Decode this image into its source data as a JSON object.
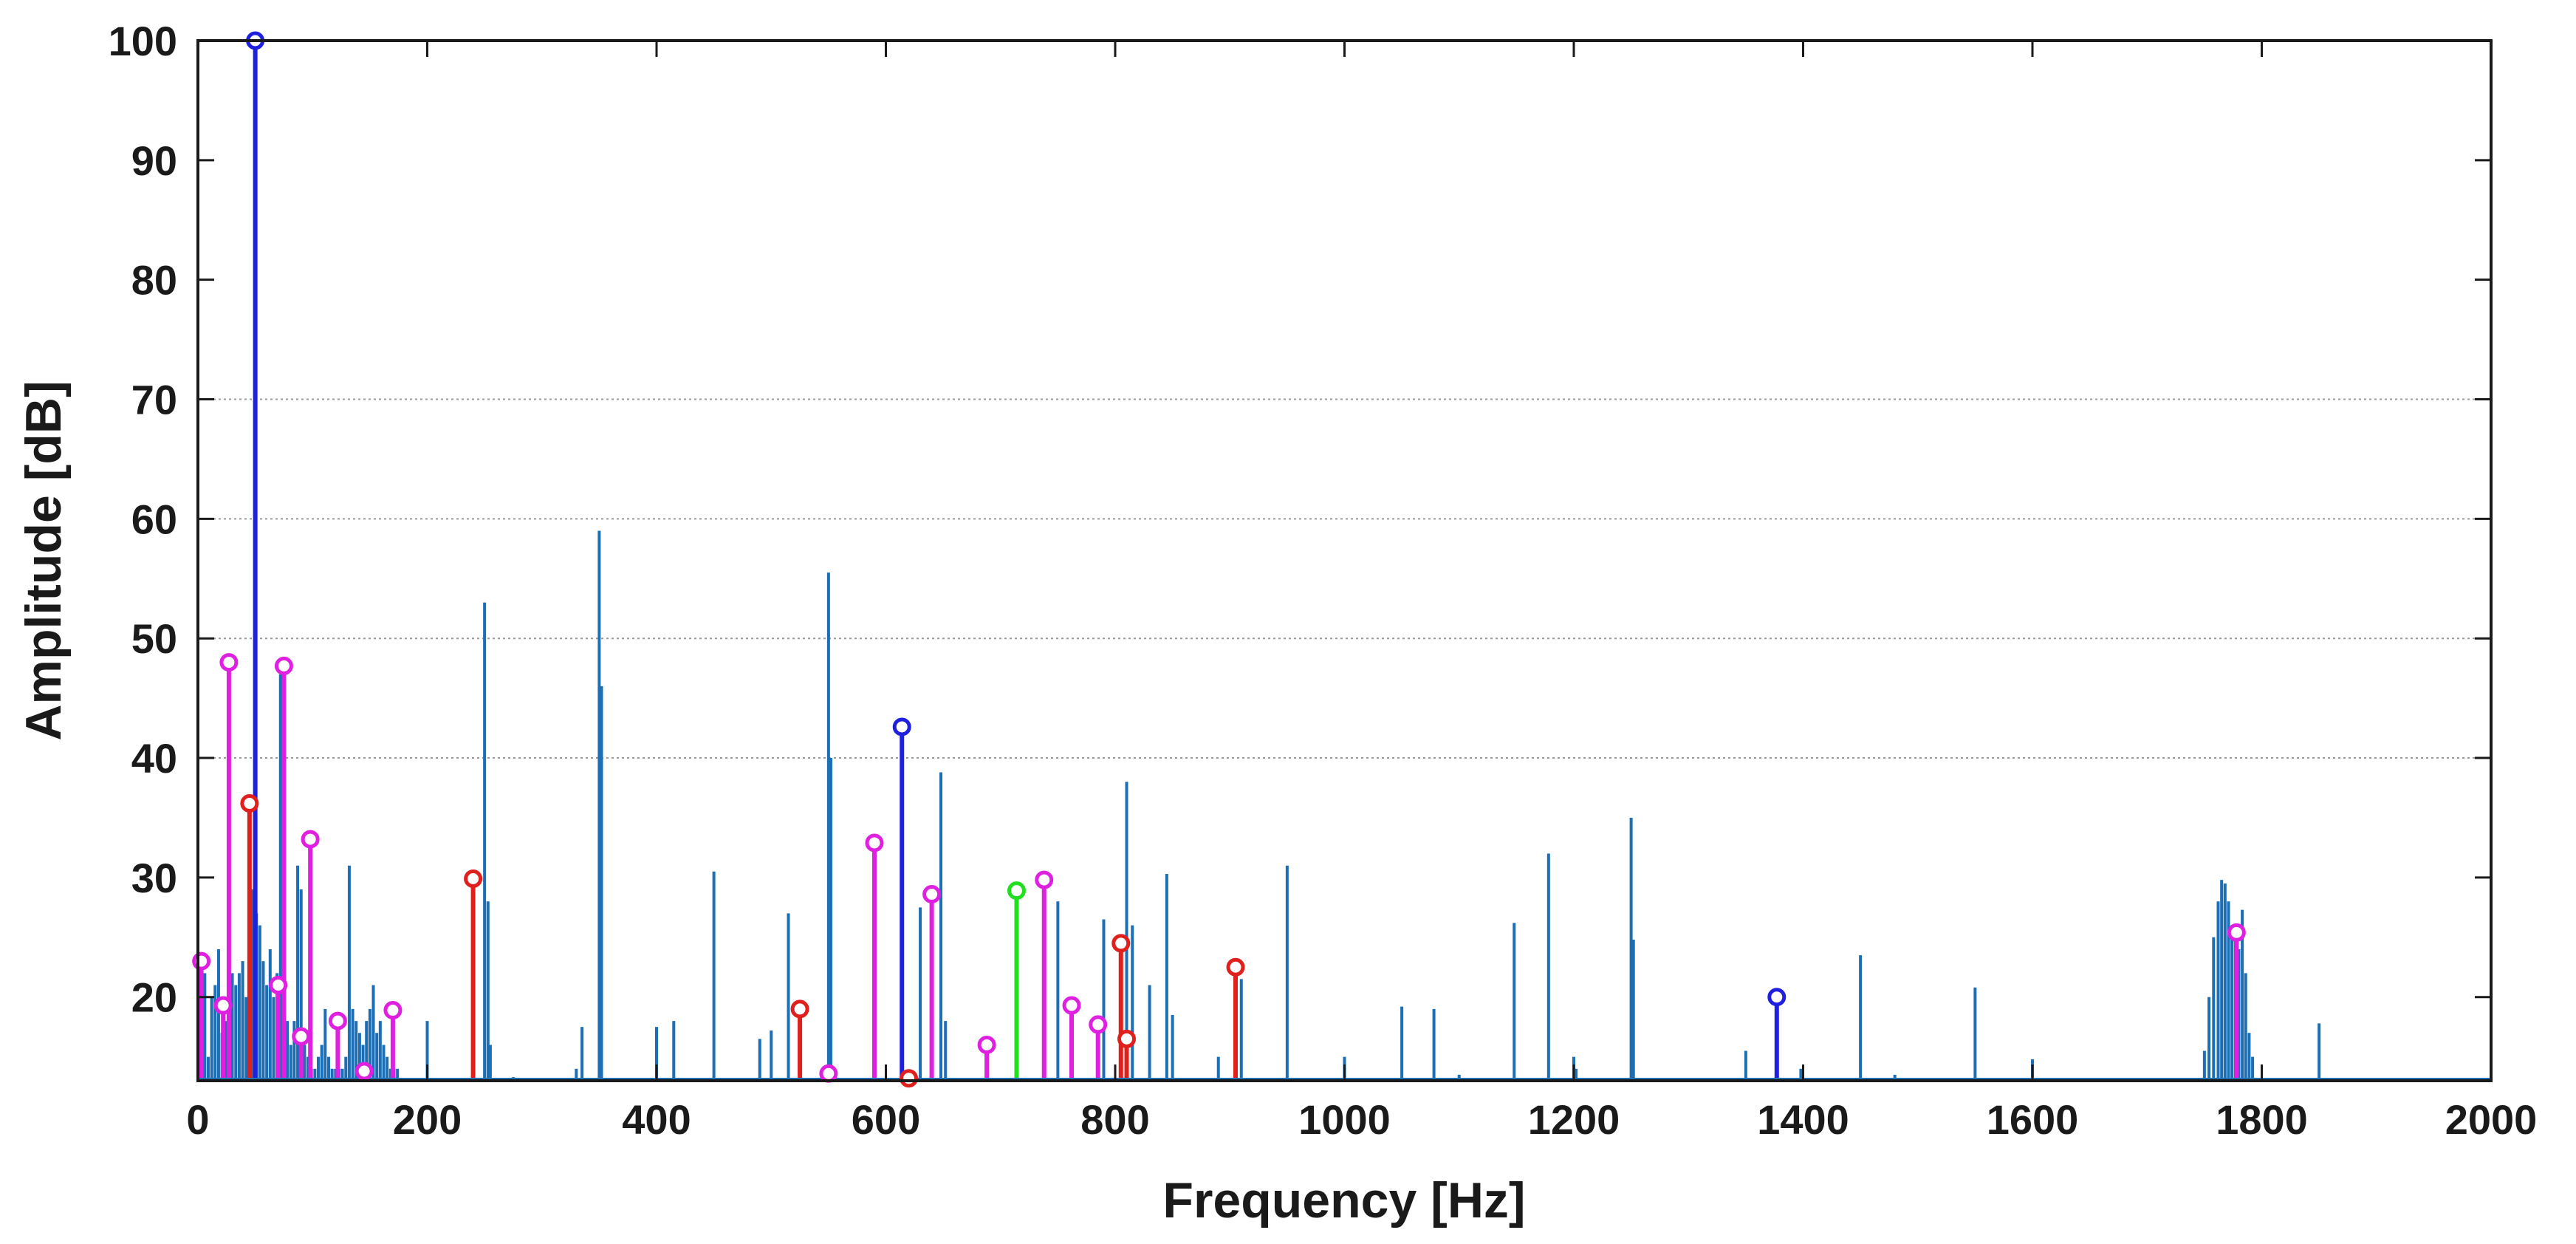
{
  "chart_data": {
    "type": "stem",
    "title": "",
    "xlabel": "Frequency [Hz]",
    "ylabel": "Amplitude [dB]",
    "xlim": [
      0,
      2000
    ],
    "ylim": [
      13,
      100
    ],
    "x_ticks": [
      0,
      200,
      400,
      600,
      800,
      1000,
      1200,
      1400,
      1600,
      1800,
      2000
    ],
    "y_ticks": [
      20,
      30,
      40,
      50,
      60,
      70,
      80,
      90,
      100
    ],
    "grid": "y-dashed",
    "baseline_color": "#1d6fb5",
    "series": [
      {
        "color": "#1d6fb5",
        "marker": "none",
        "x": [
          0,
          3,
          6,
          9,
          12,
          15,
          18,
          21,
          24,
          27,
          30,
          33,
          36,
          39,
          42,
          45,
          48,
          51,
          54,
          57,
          60,
          63,
          66,
          69,
          72,
          75,
          78,
          81,
          84,
          87,
          90,
          93,
          96,
          99,
          102,
          105,
          108,
          111,
          114,
          117,
          120,
          123,
          126,
          129,
          132,
          135,
          138,
          141,
          144,
          147,
          150,
          153,
          156,
          159,
          162,
          165,
          168,
          171,
          174,
          200,
          240,
          250,
          253,
          255,
          275,
          330,
          335,
          350,
          352,
          400,
          415,
          450,
          490,
          500,
          515,
          550,
          552,
          630,
          648,
          652,
          750,
          790,
          810,
          815,
          830,
          845,
          850,
          890,
          910,
          950,
          1000,
          1050,
          1078,
          1100,
          1148,
          1178,
          1200,
          1202,
          1250,
          1252,
          1350,
          1398,
          1450,
          1480,
          1550,
          1600,
          1750,
          1754,
          1758,
          1762,
          1765,
          1768,
          1771,
          1774,
          1777,
          1780,
          1783,
          1786,
          1789,
          1792,
          1850
        ],
        "y": [
          63.5,
          18,
          22,
          15,
          20,
          21,
          24,
          17,
          18,
          24,
          22,
          21,
          22,
          23,
          20,
          25,
          29,
          27,
          26,
          23,
          21,
          24,
          20,
          22,
          47,
          20,
          18,
          16,
          18,
          31,
          29,
          16,
          15,
          14,
          14,
          15,
          16,
          19,
          15,
          14,
          14,
          14,
          14,
          15,
          31,
          19,
          18,
          17,
          16,
          18,
          19,
          21,
          17,
          18,
          16,
          15,
          14,
          14,
          14,
          18,
          17,
          53,
          28,
          16,
          13.3,
          14,
          17.5,
          59,
          46,
          17.5,
          18,
          30.5,
          16.5,
          17.2,
          27,
          55.5,
          40,
          27.5,
          38.8,
          18,
          28,
          26.5,
          38,
          26,
          21,
          30.3,
          18.5,
          15,
          21.5,
          31,
          15,
          19.2,
          19,
          13.5,
          26.2,
          32,
          15,
          14,
          35,
          24.8,
          15.5,
          14,
          23.5,
          13.5,
          20.8,
          14.8,
          15.5,
          20,
          25,
          28,
          29.8,
          29.5,
          28,
          26,
          25,
          24,
          27.3,
          22,
          17,
          15,
          17.8
        ]
      },
      {
        "color": "#1f1fe0",
        "marker": "circle",
        "x": [
          50,
          614,
          1377
        ],
        "y": [
          100,
          42.6,
          20
        ]
      },
      {
        "color": "#e0201c",
        "marker": "circle",
        "x": [
          45,
          240,
          525,
          620,
          805,
          810,
          905
        ],
        "y": [
          36.2,
          29.9,
          19,
          13.2,
          24.5,
          16.5,
          22.5
        ]
      },
      {
        "color": "#e020e0",
        "marker": "circle",
        "x": [
          3,
          22,
          27,
          70,
          75,
          90,
          98,
          122,
          145,
          170,
          550,
          590,
          640,
          688,
          738,
          762,
          785,
          1778
        ],
        "y": [
          23,
          19.3,
          48,
          21,
          47.7,
          16.7,
          33.2,
          18,
          13.8,
          18.9,
          13.6,
          32.9,
          28.6,
          16,
          29.8,
          19.3,
          17.7,
          25.4
        ]
      },
      {
        "color": "#1fdf1f",
        "marker": "circle",
        "x": [
          714
        ],
        "y": [
          28.9
        ]
      }
    ]
  }
}
